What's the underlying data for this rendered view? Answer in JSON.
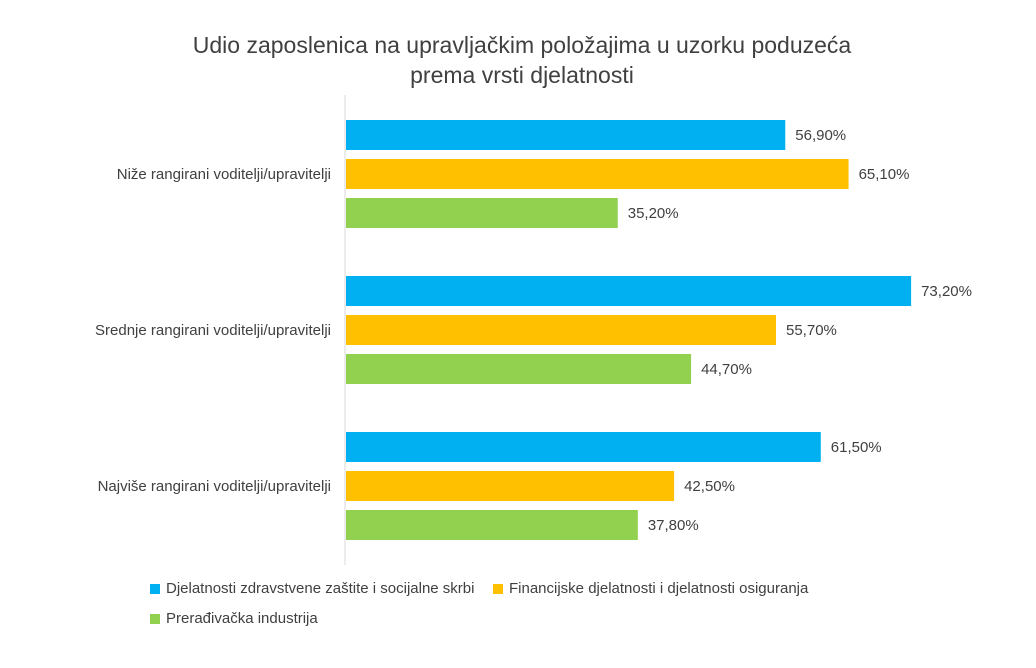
{
  "chart_data": {
    "type": "bar",
    "orientation": "horizontal",
    "title": "Udio zaposlenica na upravljačkim položajima u uzorku poduzeća prema vrsti djelatnosti",
    "title_lines": [
      "Udio zaposlenica na upravljačkim položajima u uzorku poduzeća",
      "prema vrsti djelatnosti"
    ],
    "xlabel": "",
    "ylabel": "",
    "categories": [
      "Niže rangirani voditelji/upravitelji",
      "Srednje rangirani voditelji/upravitelji",
      "Najviše rangirani voditelji/upravitelji"
    ],
    "series": [
      {
        "name": "Djelatnosti zdravstvene zaštite i socijalne skrbi",
        "color": "#00B0F0",
        "values": [
          56.9,
          73.2,
          61.5
        ],
        "labels": [
          "56,90%",
          "73,20%",
          "61,50%"
        ]
      },
      {
        "name": "Financijske djelatnosti i djelatnosti osiguranja",
        "color": "#FFC000",
        "values": [
          65.1,
          55.7,
          42.5
        ],
        "labels": [
          "65,10%",
          "55,70%",
          "42,50%"
        ]
      },
      {
        "name": "Prerađivačka industrija",
        "color": "#92D050",
        "values": [
          35.2,
          44.7,
          37.8
        ],
        "labels": [
          "35,20%",
          "44,70%",
          "37,80%"
        ]
      }
    ],
    "xlim": [
      0,
      80
    ],
    "grid": false,
    "legend_position": "bottom"
  }
}
